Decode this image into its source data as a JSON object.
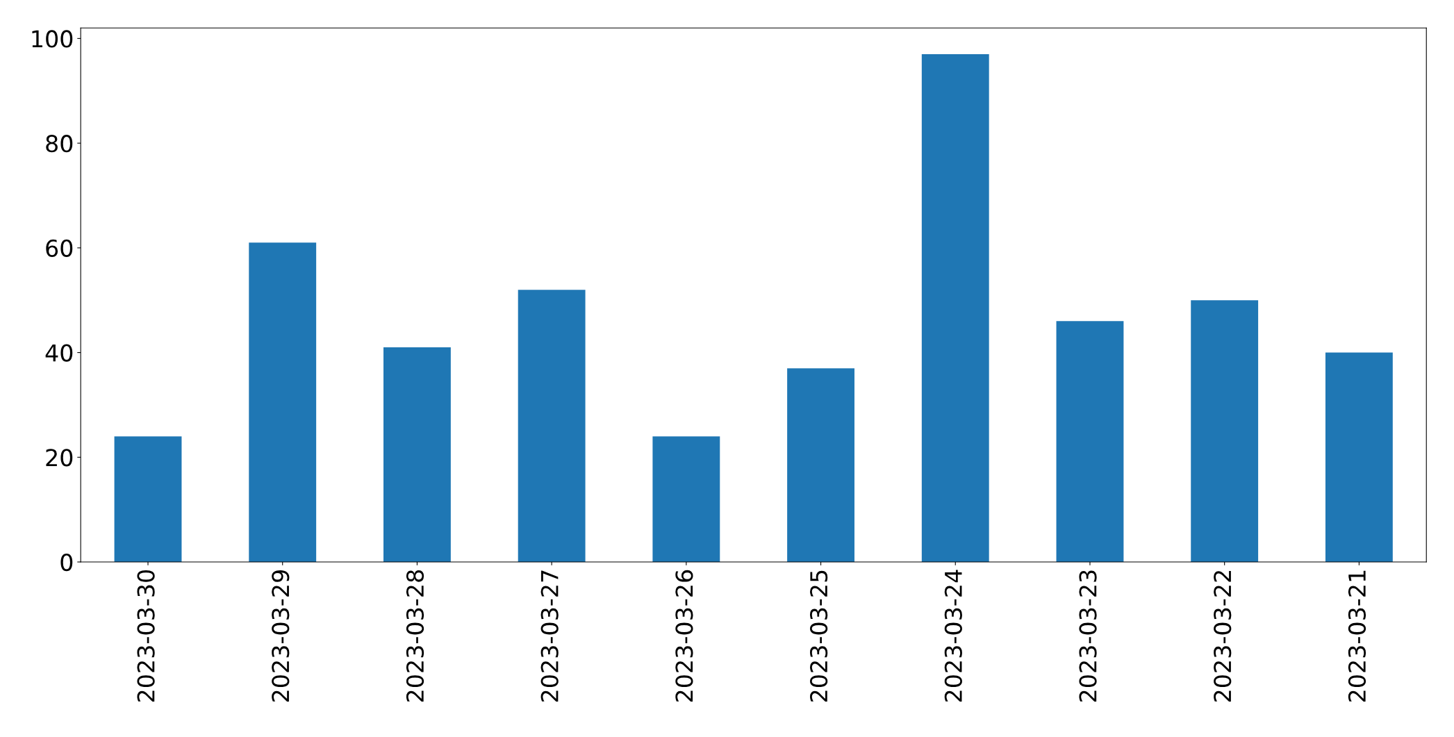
{
  "chart_data": {
    "type": "bar",
    "categories": [
      "2023-03-30",
      "2023-03-29",
      "2023-03-28",
      "2023-03-27",
      "2023-03-26",
      "2023-03-25",
      "2023-03-24",
      "2023-03-23",
      "2023-03-22",
      "2023-03-21"
    ],
    "values": [
      24,
      61,
      41,
      52,
      24,
      37,
      97,
      46,
      50,
      40
    ],
    "color": "#1f77b4",
    "ylim": [
      0,
      102
    ],
    "yticks": [
      0,
      20,
      40,
      60,
      80,
      100
    ],
    "grid": false
  }
}
